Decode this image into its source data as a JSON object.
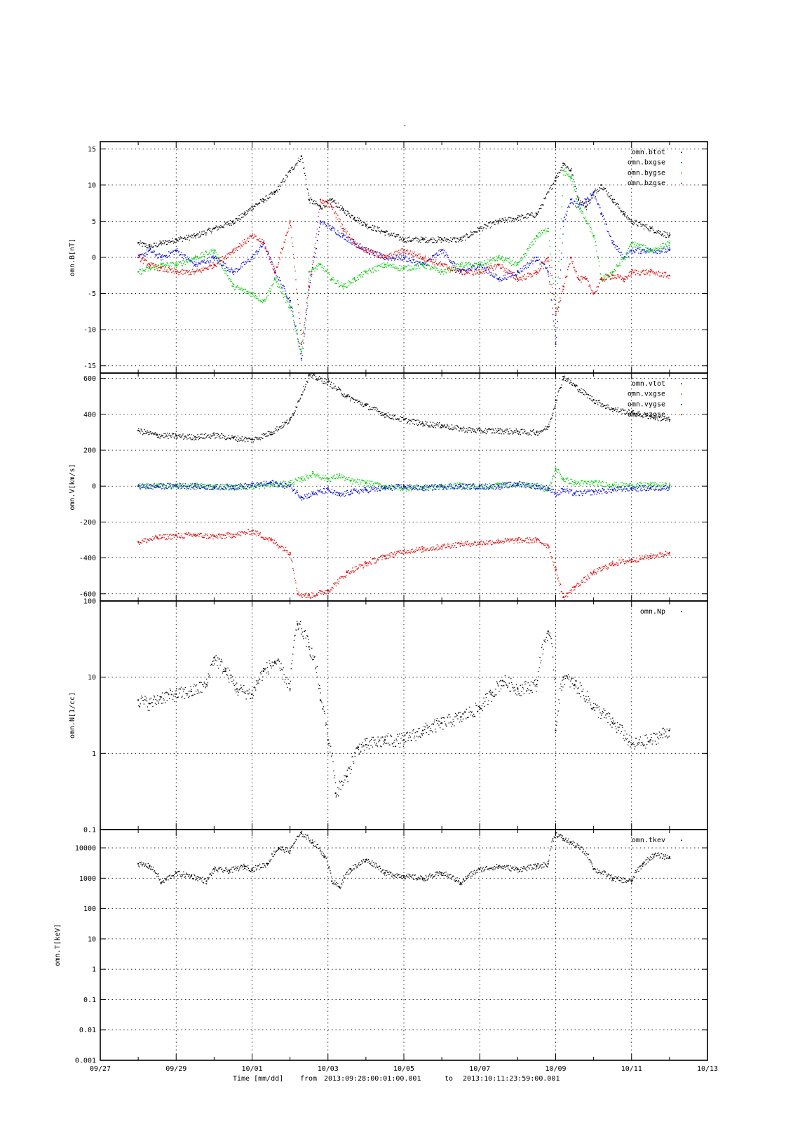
{
  "page_title": "-",
  "footer": {
    "xlabel": "Time [mm/dd]",
    "from_label": "from",
    "from": "2013:09:28:00:01:00.001",
    "to_label": "to",
    "to": "2013:10:11:23:59:00.001"
  },
  "x_ticks": [
    "09/27",
    "09/29",
    "10/01",
    "10/03",
    "10/05",
    "10/07",
    "10/09",
    "10/11",
    "10/13"
  ],
  "chart_data": [
    {
      "type": "scatter",
      "ylabel": "omn.B[nT]",
      "ylim": [
        -16,
        16
      ],
      "y_ticks": [
        "15",
        "10",
        "5",
        "0",
        "-5",
        "-10",
        "-15"
      ],
      "legend_position": "top-right",
      "series": [
        {
          "name": "omn.btot",
          "color": "#000000",
          "x": [
            28.0,
            28.3,
            28.6,
            29.0,
            29.5,
            30.0,
            30.5,
            30.8,
            31.0,
            31.3,
            31.6,
            32.0,
            32.3,
            32.5,
            32.8,
            33.1,
            33.4,
            33.7,
            34.0,
            34.5,
            35.0,
            35.5,
            36.0,
            36.5,
            37.0,
            37.5,
            38.0,
            38.5,
            39.0,
            39.2,
            39.4,
            39.6,
            39.8,
            40.0,
            40.2,
            40.5,
            40.8,
            41.0,
            41.5,
            42.0
          ],
          "y": [
            2,
            1.5,
            2,
            2.5,
            3,
            4,
            5,
            6,
            7,
            8,
            9,
            12,
            14,
            8,
            7,
            8,
            6.5,
            5.5,
            4.5,
            3.5,
            2.5,
            2.5,
            2.5,
            2.5,
            4,
            5,
            5.5,
            6,
            11,
            13,
            12,
            8,
            7,
            9,
            10,
            8,
            6,
            5,
            4,
            3
          ]
        },
        {
          "name": "omn.bxgse",
          "color": "#0000dd",
          "x": [
            28.0,
            28.3,
            28.6,
            29.0,
            29.5,
            30.0,
            30.5,
            31.0,
            31.3,
            31.6,
            32.0,
            32.3,
            32.5,
            32.8,
            33.1,
            33.4,
            33.7,
            34.0,
            34.5,
            35.0,
            35.5,
            36.0,
            36.5,
            37.0,
            37.5,
            38.0,
            38.5,
            38.8,
            39.0,
            39.2,
            39.4,
            39.6,
            39.8,
            40.0,
            40.2,
            40.5,
            40.8,
            41.0,
            41.5,
            42.0
          ],
          "y": [
            0,
            1,
            0,
            1,
            -1,
            0,
            -2,
            0,
            2,
            -2,
            -6,
            -14,
            -4,
            5,
            4,
            3,
            2,
            1,
            0,
            0,
            -1,
            1,
            -2,
            -1,
            -3,
            -2,
            0,
            -2,
            -12,
            5,
            8,
            7,
            8,
            9,
            6,
            2,
            0,
            1,
            1,
            1
          ]
        },
        {
          "name": "omn.bygse",
          "color": "#00cc00",
          "x": [
            28.0,
            28.3,
            28.6,
            29.0,
            29.5,
            30.0,
            30.5,
            31.0,
            31.3,
            31.6,
            32.0,
            32.3,
            32.5,
            32.8,
            33.1,
            33.4,
            33.7,
            34.0,
            34.5,
            35.0,
            35.5,
            36.0,
            36.5,
            37.0,
            37.5,
            38.0,
            38.5,
            38.8,
            39.0,
            39.2,
            39.4,
            39.6,
            39.8,
            40.0,
            40.2,
            40.5,
            40.8,
            41.0,
            41.5,
            42.0
          ],
          "y": [
            -2,
            -1.5,
            -1,
            -1,
            0,
            1,
            -4,
            -5,
            -6,
            -3,
            -7,
            -13,
            -2,
            -1,
            -3,
            -4,
            -3,
            -2,
            -1,
            -1.5,
            -1,
            -2,
            -1,
            -1,
            0,
            -1,
            3,
            4,
            -8,
            12,
            11,
            7,
            5,
            3,
            -3,
            -2,
            0,
            2,
            1,
            2
          ]
        },
        {
          "name": "omn.bzgse",
          "color": "#dd0000",
          "x": [
            28.0,
            28.3,
            28.6,
            29.0,
            29.5,
            30.0,
            30.5,
            31.0,
            31.3,
            31.6,
            32.0,
            32.3,
            32.5,
            32.8,
            33.1,
            33.4,
            33.7,
            34.0,
            34.5,
            35.0,
            35.5,
            36.0,
            36.5,
            37.0,
            37.5,
            38.0,
            38.5,
            38.8,
            39.0,
            39.2,
            39.4,
            39.6,
            39.8,
            40.0,
            40.2,
            40.5,
            40.8,
            41.0,
            41.5,
            42.0
          ],
          "y": [
            0,
            -1,
            -1.5,
            -2,
            -2,
            -1,
            1,
            3,
            2,
            -2,
            5,
            -12,
            -4,
            8,
            7,
            4,
            2,
            1,
            0,
            1,
            0,
            -1,
            -2,
            -2,
            -1,
            -3,
            -2,
            0,
            -8,
            -4,
            0,
            -3,
            -3,
            -5,
            -3,
            -2.5,
            -3,
            -2,
            -2,
            -2.5
          ]
        }
      ]
    },
    {
      "type": "scatter",
      "ylabel": "omn.V[km/s]",
      "ylim": [
        -640,
        630
      ],
      "y_ticks": [
        "600",
        "400",
        "200",
        "0",
        "-200",
        "-400",
        "-600"
      ],
      "legend_position": "top-right",
      "series": [
        {
          "name": "omn.vtot",
          "color": "#000000",
          "x": [
            28.0,
            28.5,
            29.0,
            29.5,
            30.0,
            30.5,
            31.0,
            31.5,
            32.0,
            32.5,
            33.0,
            33.5,
            34.0,
            34.5,
            35.0,
            35.5,
            36.0,
            36.5,
            37.0,
            37.5,
            38.0,
            38.5,
            38.8,
            39.0,
            39.2,
            39.5,
            40.0,
            40.5,
            41.0,
            41.5,
            42.0
          ],
          "y": [
            310,
            285,
            280,
            275,
            285,
            270,
            260,
            300,
            370,
            620,
            580,
            500,
            450,
            400,
            370,
            350,
            340,
            320,
            310,
            310,
            305,
            300,
            330,
            480,
            610,
            560,
            480,
            430,
            410,
            390,
            370
          ]
        },
        {
          "name": "omn.vxgse",
          "color": "#00cc00",
          "x": [
            28.0,
            28.5,
            29.0,
            29.5,
            30.0,
            30.5,
            31.0,
            31.5,
            32.0,
            32.3,
            32.6,
            33.0,
            33.3,
            33.6,
            34.0,
            34.5,
            35.0,
            35.5,
            36.0,
            36.5,
            37.0,
            37.5,
            38.0,
            38.5,
            38.8,
            39.0,
            39.2,
            39.5,
            40.0,
            40.5,
            41.0,
            41.5,
            42.0
          ],
          "y": [
            0,
            5,
            0,
            5,
            0,
            -5,
            0,
            10,
            20,
            40,
            70,
            40,
            60,
            30,
            20,
            0,
            -10,
            -5,
            0,
            5,
            -5,
            10,
            10,
            5,
            -20,
            100,
            40,
            20,
            20,
            10,
            5,
            10,
            5
          ]
        },
        {
          "name": "omn.vygse",
          "color": "#0000dd",
          "x": [
            28.0,
            28.5,
            29.0,
            29.5,
            30.0,
            30.5,
            31.0,
            31.5,
            32.0,
            32.3,
            32.6,
            33.0,
            33.3,
            33.6,
            34.0,
            34.5,
            35.0,
            35.5,
            36.0,
            36.5,
            37.0,
            37.5,
            38.0,
            38.5,
            38.8,
            39.0,
            39.2,
            39.5,
            40.0,
            40.5,
            41.0,
            41.5,
            42.0
          ],
          "y": [
            0,
            0,
            5,
            0,
            -5,
            0,
            5,
            20,
            0,
            -60,
            -40,
            -20,
            -50,
            -30,
            -20,
            -10,
            0,
            -10,
            0,
            0,
            0,
            0,
            15,
            0,
            -10,
            -40,
            -20,
            -40,
            -30,
            -20,
            -10,
            -10,
            -5
          ]
        },
        {
          "name": "omn.vzgse",
          "color": "#dd0000",
          "x": [
            28.0,
            28.5,
            29.0,
            29.5,
            30.0,
            30.5,
            31.0,
            31.5,
            32.0,
            32.2,
            32.5,
            33.0,
            33.5,
            34.0,
            34.5,
            35.0,
            35.5,
            36.0,
            36.5,
            37.0,
            37.5,
            38.0,
            38.5,
            38.8,
            39.0,
            39.2,
            39.5,
            40.0,
            40.5,
            41.0,
            41.5,
            42.0
          ],
          "y": [
            -310,
            -285,
            -275,
            -270,
            -280,
            -270,
            -250,
            -300,
            -370,
            -600,
            -610,
            -580,
            -480,
            -430,
            -390,
            -360,
            -350,
            -335,
            -320,
            -315,
            -305,
            -300,
            -300,
            -330,
            -470,
            -620,
            -560,
            -480,
            -430,
            -410,
            -390,
            -370
          ]
        }
      ]
    },
    {
      "type": "scatter",
      "ylabel": "omn.N[1/cc]",
      "y_scale": "log",
      "ylim": [
        0.1,
        100
      ],
      "y_ticks": [
        "100",
        "10",
        "1",
        "0.1"
      ],
      "legend_position": "top-right",
      "series": [
        {
          "name": "omn.Np",
          "color": "#000000",
          "x": [
            28.0,
            28.3,
            28.6,
            29.0,
            29.4,
            29.8,
            30.0,
            30.3,
            30.6,
            31.0,
            31.3,
            31.6,
            32.0,
            32.2,
            32.5,
            32.8,
            33.0,
            33.2,
            33.5,
            33.8,
            34.0,
            34.5,
            35.0,
            35.5,
            36.0,
            36.5,
            37.0,
            37.3,
            37.6,
            38.0,
            38.5,
            38.8,
            39.0,
            39.2,
            39.5,
            40.0,
            40.5,
            41.0,
            41.5,
            42.0
          ],
          "y": [
            5,
            4.5,
            5.5,
            6,
            6.5,
            8,
            18,
            12,
            7,
            6,
            12,
            16,
            7,
            50,
            25,
            5,
            1.5,
            0.3,
            0.5,
            1.2,
            1.3,
            1.5,
            1.5,
            2,
            2.5,
            3,
            4,
            6,
            9,
            7,
            8,
            40,
            2,
            10,
            8,
            4,
            2.5,
            1.3,
            1.5,
            2
          ]
        }
      ]
    },
    {
      "type": "scatter",
      "ylabel": "omn.T[keV]",
      "y_scale": "log",
      "ylim": [
        0.001,
        40000
      ],
      "y_ticks": [
        "10000",
        "1000",
        "100",
        "10",
        "1",
        "0.1",
        "0.01",
        "0.001"
      ],
      "legend_position": "top-right",
      "series": [
        {
          "name": "omn.tkev",
          "color": "#000000",
          "x": [
            28.0,
            28.3,
            28.6,
            29.0,
            29.4,
            29.8,
            30.0,
            30.4,
            30.8,
            31.0,
            31.4,
            31.7,
            32.0,
            32.3,
            32.6,
            32.9,
            33.1,
            33.3,
            33.6,
            34.0,
            34.5,
            35.0,
            35.5,
            36.0,
            36.5,
            37.0,
            37.5,
            38.0,
            38.5,
            38.8,
            39.0,
            39.2,
            39.4,
            40.0,
            40.5,
            41.0,
            41.3,
            41.6,
            42.0
          ],
          "y": [
            3000,
            2500,
            700,
            1500,
            1200,
            800,
            2000,
            1800,
            2500,
            2000,
            3000,
            10000,
            8000,
            30000,
            15000,
            5000,
            800,
            500,
            2000,
            4000,
            1500,
            1200,
            1000,
            1500,
            700,
            2000,
            2500,
            2000,
            2500,
            3000,
            30000,
            20000,
            15000,
            2000,
            1000,
            800,
            3000,
            6000,
            5000
          ]
        }
      ]
    }
  ]
}
